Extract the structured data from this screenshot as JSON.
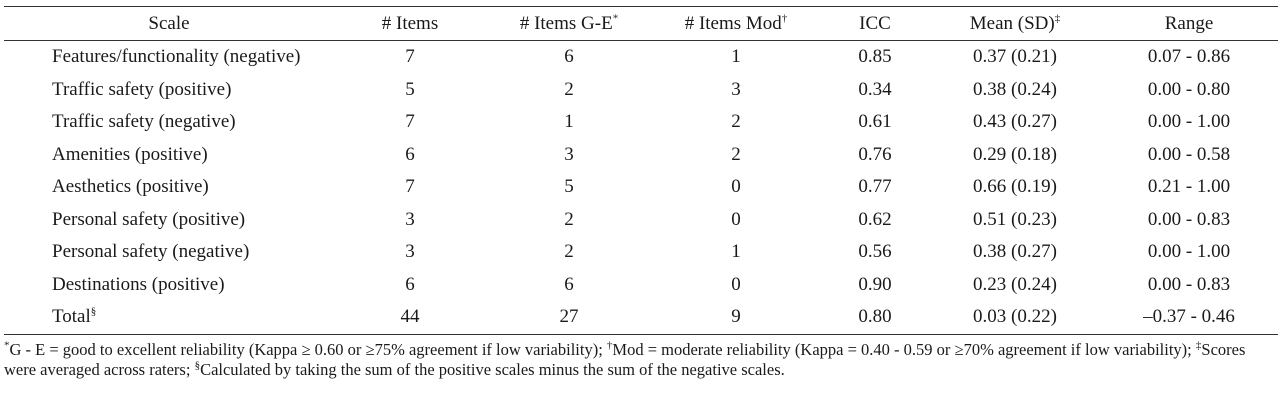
{
  "headers": {
    "scale": "Scale",
    "items": "# Items",
    "items_ge": "# Items G-E",
    "items_ge_mark": "*",
    "items_mod": "# Items Mod",
    "items_mod_mark": "†",
    "icc": "ICC",
    "mean_sd": "Mean (SD)",
    "mean_sd_mark": "‡",
    "range": "Range"
  },
  "rows": [
    {
      "scale": "Features/functionality (negative)",
      "items": "7",
      "items_ge": "6",
      "items_mod": "1",
      "icc": "0.85",
      "mean_sd": "0.37 (0.21)",
      "range": "0.07 - 0.86"
    },
    {
      "scale": "Traffic safety (positive)",
      "items": "5",
      "items_ge": "2",
      "items_mod": "3",
      "icc": "0.34",
      "mean_sd": "0.38 (0.24)",
      "range": "0.00 - 0.80"
    },
    {
      "scale": "Traffic safety (negative)",
      "items": "7",
      "items_ge": "1",
      "items_mod": "2",
      "icc": "0.61",
      "mean_sd": "0.43 (0.27)",
      "range": "0.00 - 1.00"
    },
    {
      "scale": "Amenities (positive)",
      "items": "6",
      "items_ge": "3",
      "items_mod": "2",
      "icc": "0.76",
      "mean_sd": "0.29 (0.18)",
      "range": "0.00 - 0.58"
    },
    {
      "scale": "Aesthetics (positive)",
      "items": "7",
      "items_ge": "5",
      "items_mod": "0",
      "icc": "0.77",
      "mean_sd": "0.66 (0.19)",
      "range": "0.21 - 1.00"
    },
    {
      "scale": "Personal safety (positive)",
      "items": "3",
      "items_ge": "2",
      "items_mod": "0",
      "icc": "0.62",
      "mean_sd": "0.51 (0.23)",
      "range": "0.00 - 0.83"
    },
    {
      "scale": "Personal safety (negative)",
      "items": "3",
      "items_ge": "2",
      "items_mod": "1",
      "icc": "0.56",
      "mean_sd": "0.38 (0.27)",
      "range": "0.00 - 1.00"
    },
    {
      "scale": "Destinations (positive)",
      "items": "6",
      "items_ge": "6",
      "items_mod": "0",
      "icc": "0.90",
      "mean_sd": "0.23 (0.24)",
      "range": "0.00 - 0.83"
    }
  ],
  "total": {
    "scale": "Total",
    "scale_mark": "§",
    "items": "44",
    "items_ge": "27",
    "items_mod": "9",
    "icc": "0.80",
    "mean_sd": "0.03 (0.22)",
    "range": "–0.37 - 0.46"
  },
  "footnotes": {
    "mark1": "*",
    "text1": "G - E = good to excellent reliability (Kappa ≥ 0.60 or ≥75% agreement if low variability); ",
    "mark2": "†",
    "text2": "Mod = moderate reliability (Kappa = 0.40 - 0.59 or ≥70% agreement if low variability); ",
    "mark3": "‡",
    "text3": "Scores were averaged across raters; ",
    "mark4": "§",
    "text4": "Calculated by taking the sum of the positive scales minus the sum of the negative scales."
  }
}
